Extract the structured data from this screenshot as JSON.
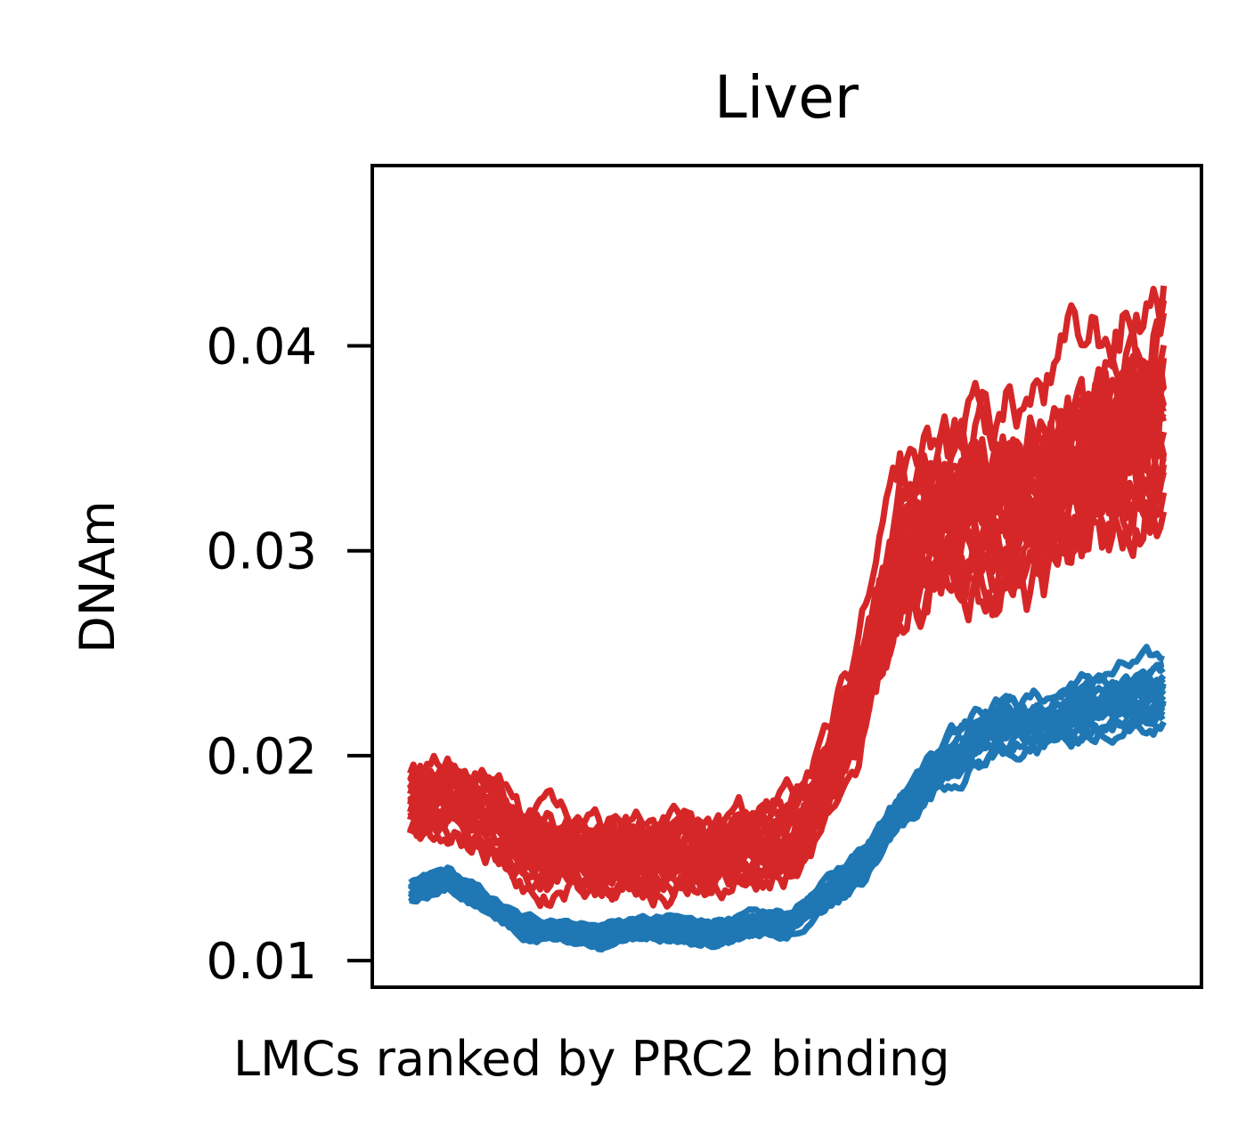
{
  "chart_data": {
    "type": "line",
    "title": "Liver",
    "xlabel": "LMCs ranked by PRC2 binding",
    "ylabel": "DNAm",
    "ylim": [
      0.0087,
      0.0488
    ],
    "xlim": [
      -0.05,
      1.05
    ],
    "y_ticks": [
      0.01,
      0.02,
      0.03,
      0.04
    ],
    "y_tick_labels": [
      "0.01",
      "0.02",
      "0.03",
      "0.04"
    ],
    "x_ticks": [],
    "grid": false,
    "legend": "none",
    "colors": {
      "group_high": "#d62728",
      "group_low": "#1f77b4"
    },
    "series_groups": [
      {
        "color_key": "group_low",
        "count": 18,
        "x": [
          0,
          0.05,
          0.1,
          0.15,
          0.2,
          0.25,
          0.3,
          0.35,
          0.4,
          0.45,
          0.5,
          0.55,
          0.6,
          0.65,
          0.7,
          0.75,
          0.8,
          0.85,
          0.9,
          0.95,
          1.0
        ],
        "mean": [
          0.0133,
          0.014,
          0.0128,
          0.0116,
          0.0116,
          0.0112,
          0.0116,
          0.0116,
          0.0113,
          0.0117,
          0.0118,
          0.0132,
          0.0148,
          0.0175,
          0.0197,
          0.0211,
          0.0218,
          0.0218,
          0.0225,
          0.023,
          0.0232
        ],
        "spread": [
          0.0004,
          0.0004,
          0.0004,
          0.0004,
          0.0004,
          0.0004,
          0.0004,
          0.0004,
          0.0004,
          0.0004,
          0.0004,
          0.0005,
          0.0006,
          0.0007,
          0.0009,
          0.001,
          0.001,
          0.001,
          0.001,
          0.001,
          0.001
        ]
      },
      {
        "color_key": "group_high",
        "count": 24,
        "x": [
          0,
          0.05,
          0.1,
          0.15,
          0.2,
          0.25,
          0.3,
          0.35,
          0.4,
          0.45,
          0.5,
          0.55,
          0.6,
          0.65,
          0.7,
          0.75,
          0.8,
          0.85,
          0.9,
          0.95,
          1.0
        ],
        "mean": [
          0.0175,
          0.0178,
          0.017,
          0.0155,
          0.0152,
          0.015,
          0.0152,
          0.0152,
          0.015,
          0.0155,
          0.0157,
          0.018,
          0.023,
          0.0295,
          0.0312,
          0.032,
          0.0322,
          0.0328,
          0.034,
          0.0352,
          0.037
        ],
        "spread": [
          0.0015,
          0.0015,
          0.0015,
          0.0015,
          0.0015,
          0.0015,
          0.0015,
          0.0015,
          0.0015,
          0.0015,
          0.0015,
          0.0018,
          0.0022,
          0.0028,
          0.0032,
          0.0035,
          0.0037,
          0.0038,
          0.004,
          0.0042,
          0.0045
        ]
      }
    ]
  }
}
